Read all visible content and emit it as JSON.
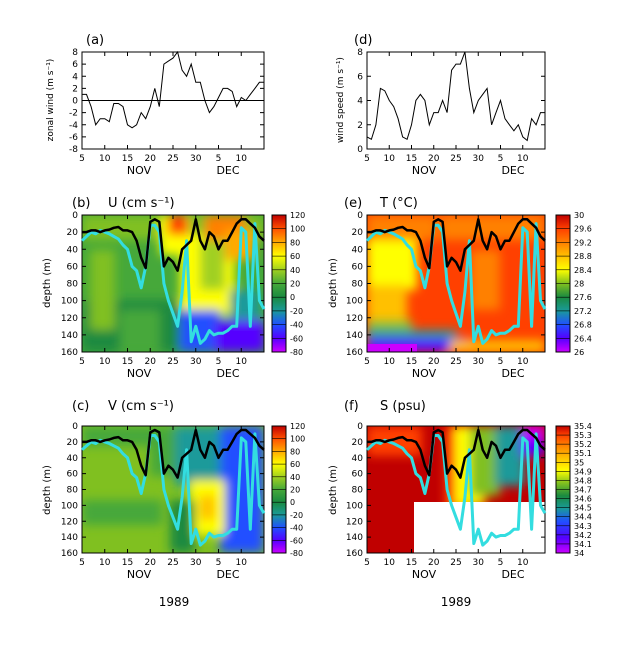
{
  "panels": [
    {
      "id": "a",
      "label": "(a)",
      "ylabel": "zonal wind",
      "yunit": "(m s⁻¹)",
      "ticks": [
        "-8",
        "-6",
        "-4",
        "-2",
        "0",
        "2",
        "4",
        "6",
        "8"
      ]
    },
    {
      "id": "d",
      "label": "(d)",
      "ylabel": "wind speed",
      "yunit": "(m s⁻¹)",
      "ticks": [
        "0",
        "2",
        "4",
        "6",
        "8"
      ]
    },
    {
      "id": "b",
      "label": "(b)",
      "title": "U (cm s⁻¹)",
      "ylabel": "depth (m)"
    },
    {
      "id": "e",
      "label": "(e)",
      "title": "T (°C)",
      "ylabel": "depth (m)"
    },
    {
      "id": "c",
      "label": "(c)",
      "title": "V (cm s⁻¹)",
      "ylabel": "depth (m)"
    },
    {
      "id": "f",
      "label": "(f)",
      "title": "S (psu)",
      "ylabel": "depth (m)"
    }
  ],
  "xaxis": {
    "ticks": [
      "5",
      "10",
      "15",
      "20",
      "25",
      "30",
      "5",
      "10"
    ],
    "months": [
      "NOV",
      "DEC"
    ],
    "year": "1989"
  },
  "depth_ticks": [
    "0",
    "20",
    "40",
    "60",
    "80",
    "100",
    "120",
    "140",
    "160"
  ],
  "colorbars": {
    "uv": [
      "120",
      "100",
      "80",
      "60",
      "40",
      "20",
      "0",
      "-20",
      "-40",
      "-60",
      "-80"
    ],
    "t": [
      "30",
      "29.6",
      "29.2",
      "28.8",
      "28.4",
      "28",
      "27.6",
      "27.2",
      "26.8",
      "26.4",
      "26"
    ],
    "s": [
      "35.4",
      "35.3",
      "35.2",
      "35.1",
      "35",
      "34.9",
      "34.8",
      "34.7",
      "34.6",
      "34.5",
      "34.4",
      "34.3",
      "34.2",
      "34.1",
      "34"
    ]
  },
  "colors": {
    "mld_line": "#000000",
    "ild_line": "#33dde0"
  },
  "chart_data": [
    {
      "type": "line",
      "panel": "a",
      "ylabel": "zonal wind",
      "ylim": [
        -8,
        8
      ],
      "x": [
        5,
        6,
        7,
        8,
        9,
        10,
        11,
        12,
        13,
        14,
        15,
        16,
        17,
        18,
        19,
        20,
        21,
        22,
        23,
        24,
        25,
        26,
        27,
        28,
        29,
        30,
        31,
        32,
        33,
        34,
        35,
        36,
        37,
        38,
        39,
        40,
        41,
        42,
        43,
        44,
        45
      ],
      "values": [
        1,
        1,
        -1,
        -4,
        -3,
        -3,
        -3.5,
        -0.5,
        -0.5,
        -1,
        -4,
        -4.5,
        -4,
        -2,
        -3,
        -1,
        2,
        -1,
        6,
        6.5,
        7,
        8,
        5,
        4,
        6,
        3,
        3,
        0,
        -2,
        -1,
        0.5,
        2,
        2,
        1.5,
        -1,
        0.5,
        0,
        1,
        2,
        3,
        3
      ]
    },
    {
      "type": "line",
      "panel": "d",
      "ylabel": "wind speed",
      "ylim": [
        0,
        8
      ],
      "x": [
        5,
        6,
        7,
        8,
        9,
        10,
        11,
        12,
        13,
        14,
        15,
        16,
        17,
        18,
        19,
        20,
        21,
        22,
        23,
        24,
        25,
        26,
        27,
        28,
        29,
        30,
        31,
        32,
        33,
        34,
        35,
        36,
        37,
        38,
        39,
        40,
        41,
        42,
        43,
        44,
        45
      ],
      "values": [
        1,
        0.8,
        2,
        5,
        4.8,
        4,
        3.5,
        2.5,
        1,
        0.8,
        2,
        4,
        4.5,
        4,
        2,
        3,
        3,
        4,
        3,
        6.5,
        7,
        7,
        8,
        5,
        3,
        4,
        4.5,
        5,
        2,
        3,
        4,
        2.5,
        2,
        1.5,
        2,
        1,
        0.7,
        2.5,
        2,
        3,
        3
      ]
    },
    {
      "type": "heatmap",
      "panel": "b",
      "title": "U (cm s⁻¹)",
      "ylabel": "depth (m)",
      "ylim": [
        160,
        0
      ],
      "colorbar": [
        -80,
        120
      ]
    },
    {
      "type": "heatmap",
      "panel": "e",
      "title": "T (°C)",
      "ylabel": "depth (m)",
      "ylim": [
        160,
        0
      ],
      "colorbar": [
        26,
        30
      ]
    },
    {
      "type": "heatmap",
      "panel": "c",
      "title": "V (cm s⁻¹)",
      "ylabel": "depth (m)",
      "ylim": [
        160,
        0
      ],
      "colorbar": [
        -80,
        120
      ]
    },
    {
      "type": "heatmap",
      "panel": "f",
      "title": "S (psu)",
      "ylabel": "depth (m)",
      "ylim": [
        160,
        0
      ],
      "colorbar": [
        34,
        35.4
      ]
    }
  ],
  "mld_depth": {
    "x": [
      5,
      6,
      7,
      8,
      9,
      10,
      11,
      12,
      13,
      14,
      15,
      16,
      17,
      18,
      19,
      20,
      21,
      22,
      23,
      24,
      25,
      26,
      27,
      28,
      29,
      30,
      31,
      32,
      33,
      34,
      35,
      36,
      37,
      38,
      39,
      40,
      41,
      42,
      43,
      44,
      45
    ],
    "values": [
      20,
      20,
      18,
      18,
      20,
      18,
      17,
      15,
      14,
      18,
      18,
      20,
      30,
      50,
      62,
      8,
      5,
      8,
      60,
      50,
      55,
      65,
      40,
      35,
      30,
      5,
      30,
      40,
      20,
      25,
      40,
      30,
      30,
      20,
      10,
      5,
      5,
      10,
      15,
      25,
      30
    ]
  },
  "ild_depth": {
    "x": [
      5,
      6,
      7,
      8,
      9,
      10,
      11,
      12,
      13,
      14,
      15,
      16,
      17,
      18,
      19,
      20,
      21,
      22,
      23,
      24,
      25,
      26,
      27,
      28,
      29,
      30,
      31,
      32,
      33,
      34,
      35,
      36,
      37,
      38,
      39,
      40,
      41,
      42,
      43,
      44,
      45
    ],
    "values": [
      30,
      25,
      20,
      22,
      18,
      20,
      22,
      25,
      28,
      35,
      40,
      60,
      65,
      85,
      60,
      12,
      12,
      20,
      80,
      100,
      115,
      130,
      90,
      30,
      148,
      130,
      150,
      145,
      135,
      140,
      138,
      138,
      135,
      130,
      130,
      15,
      20,
      130,
      10,
      100,
      110
    ]
  }
}
